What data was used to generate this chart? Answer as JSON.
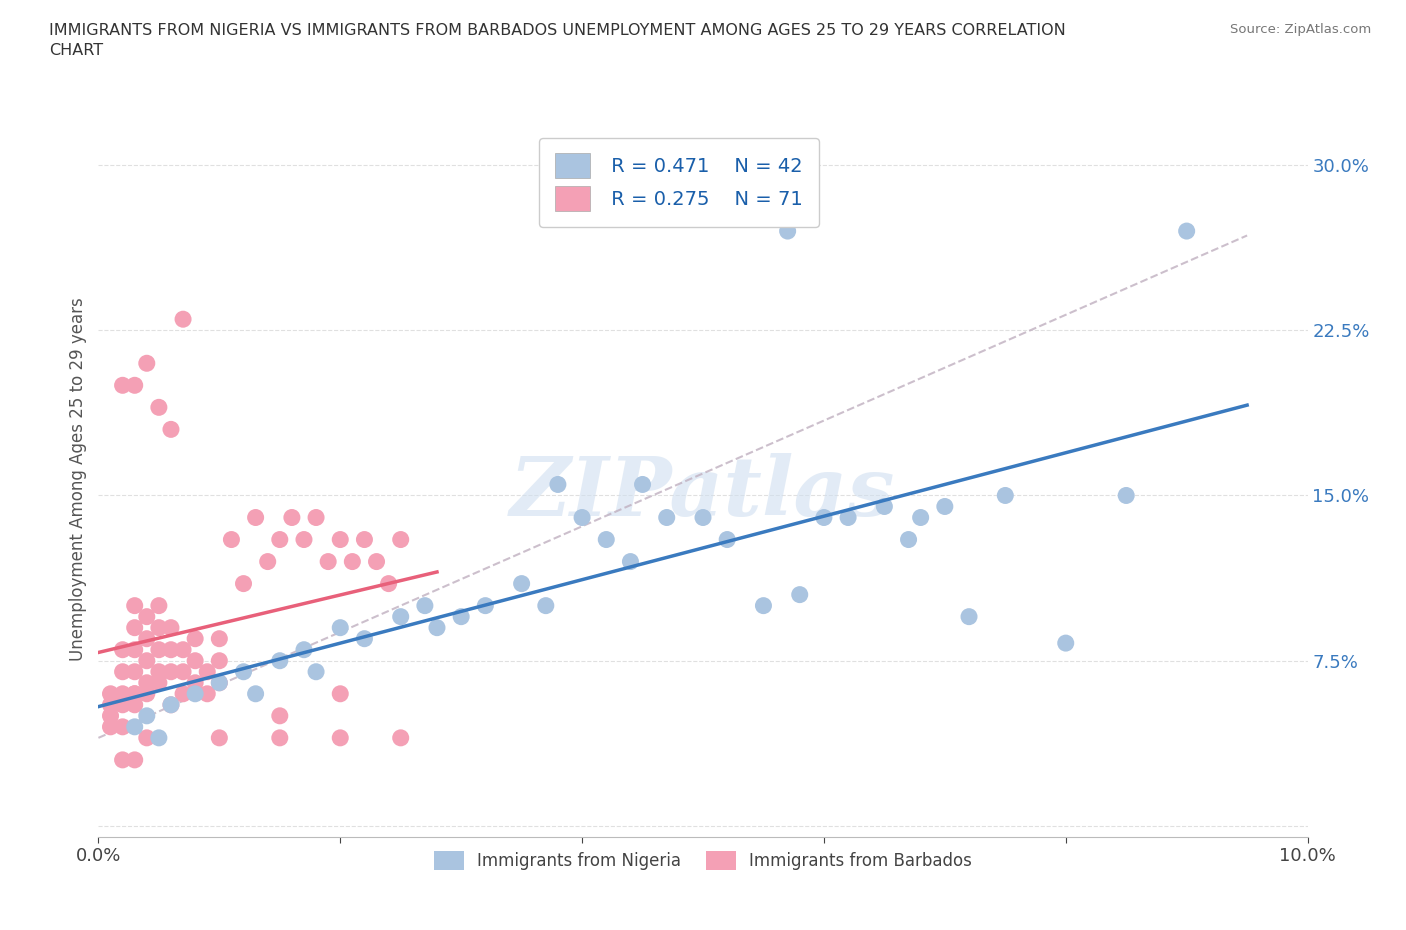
{
  "title": "IMMIGRANTS FROM NIGERIA VS IMMIGRANTS FROM BARBADOS UNEMPLOYMENT AMONG AGES 25 TO 29 YEARS CORRELATION\nCHART",
  "source": "Source: ZipAtlas.com",
  "ylabel": "Unemployment Among Ages 25 to 29 years",
  "xlim": [
    0.0,
    0.1
  ],
  "ylim": [
    -0.005,
    0.32
  ],
  "xtick_positions": [
    0.0,
    0.02,
    0.04,
    0.06,
    0.08,
    0.1
  ],
  "xticklabels": [
    "0.0%",
    "",
    "",
    "",
    "",
    "10.0%"
  ],
  "ytick_positions": [
    0.0,
    0.075,
    0.15,
    0.225,
    0.3
  ],
  "ytick_labels": [
    "",
    "7.5%",
    "15.0%",
    "22.5%",
    "30.0%"
  ],
  "nigeria_color": "#aac4e0",
  "barbados_color": "#f4a0b5",
  "nigeria_line_color": "#3a7abf",
  "barbados_line_color": "#e8607a",
  "dashed_line_color": "#c0b0c0",
  "R_nigeria": 0.471,
  "N_nigeria": 42,
  "R_barbados": 0.275,
  "N_barbados": 71,
  "nigeria_x": [
    0.003,
    0.004,
    0.005,
    0.006,
    0.008,
    0.01,
    0.012,
    0.013,
    0.015,
    0.017,
    0.018,
    0.02,
    0.022,
    0.025,
    0.027,
    0.028,
    0.03,
    0.032,
    0.035,
    0.037,
    0.038,
    0.04,
    0.042,
    0.044,
    0.045,
    0.047,
    0.05,
    0.052,
    0.055,
    0.057,
    0.058,
    0.06,
    0.062,
    0.065,
    0.067,
    0.068,
    0.07,
    0.072,
    0.075,
    0.08,
    0.085,
    0.09
  ],
  "nigeria_y": [
    0.045,
    0.05,
    0.04,
    0.055,
    0.06,
    0.065,
    0.07,
    0.06,
    0.075,
    0.08,
    0.07,
    0.09,
    0.085,
    0.095,
    0.1,
    0.09,
    0.095,
    0.1,
    0.11,
    0.1,
    0.155,
    0.14,
    0.13,
    0.12,
    0.155,
    0.14,
    0.14,
    0.13,
    0.1,
    0.27,
    0.105,
    0.14,
    0.14,
    0.145,
    0.13,
    0.14,
    0.145,
    0.095,
    0.15,
    0.083,
    0.15,
    0.27
  ],
  "barbados_x": [
    0.001,
    0.001,
    0.001,
    0.001,
    0.002,
    0.002,
    0.002,
    0.002,
    0.002,
    0.003,
    0.003,
    0.003,
    0.003,
    0.003,
    0.003,
    0.004,
    0.004,
    0.004,
    0.004,
    0.004,
    0.005,
    0.005,
    0.005,
    0.005,
    0.005,
    0.006,
    0.006,
    0.006,
    0.006,
    0.007,
    0.007,
    0.007,
    0.008,
    0.008,
    0.008,
    0.009,
    0.009,
    0.01,
    0.01,
    0.01,
    0.011,
    0.012,
    0.013,
    0.014,
    0.015,
    0.016,
    0.017,
    0.018,
    0.019,
    0.02,
    0.021,
    0.022,
    0.023,
    0.024,
    0.025,
    0.003,
    0.004,
    0.005,
    0.006,
    0.007,
    0.002,
    0.003,
    0.004,
    0.01,
    0.015,
    0.02,
    0.025,
    0.002,
    0.003,
    0.015,
    0.02
  ],
  "barbados_y": [
    0.045,
    0.05,
    0.055,
    0.06,
    0.045,
    0.06,
    0.07,
    0.08,
    0.055,
    0.06,
    0.07,
    0.08,
    0.09,
    0.1,
    0.055,
    0.065,
    0.075,
    0.085,
    0.095,
    0.06,
    0.07,
    0.08,
    0.09,
    0.1,
    0.065,
    0.07,
    0.08,
    0.09,
    0.055,
    0.06,
    0.07,
    0.08,
    0.065,
    0.075,
    0.085,
    0.07,
    0.06,
    0.075,
    0.085,
    0.065,
    0.13,
    0.11,
    0.14,
    0.12,
    0.13,
    0.14,
    0.13,
    0.14,
    0.12,
    0.13,
    0.12,
    0.13,
    0.12,
    0.11,
    0.13,
    0.2,
    0.21,
    0.19,
    0.18,
    0.23,
    0.03,
    0.03,
    0.04,
    0.04,
    0.04,
    0.04,
    0.04,
    0.2,
    0.06,
    0.05,
    0.06
  ],
  "watermark_text": "ZIPatlas",
  "background_color": "#ffffff",
  "grid_color": "#e0e0e0"
}
